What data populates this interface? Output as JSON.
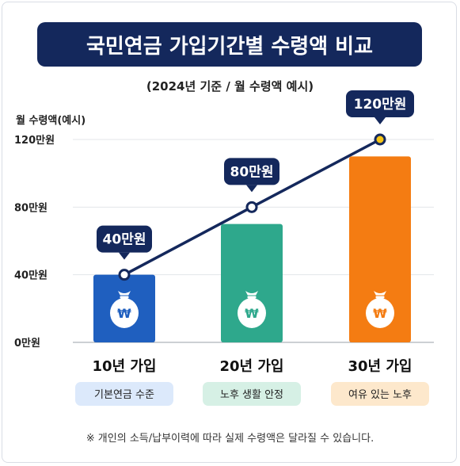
{
  "title": "국민연금 가입기간별 수령액 비교",
  "subtitle": "(2024년 기준 / 월 수령액 예시)",
  "ylabel": "월 수령액(예시)",
  "footnote": "※ 개인의 소득/납부이력에 따라 실제 수령액은 달라질 수 있습니다.",
  "colors": {
    "banner": "#14285c",
    "bar_10": "#1f5fbf",
    "bar_20": "#2ea88c",
    "bar_30": "#f47c12",
    "line": "#14285c",
    "tag_10_bg": "#dce9fb",
    "tag_20_bg": "#d6f0e5",
    "tag_30_bg": "#fde8cc"
  },
  "icons": {
    "bar": "money-bag-won-icon"
  },
  "chart_data": {
    "type": "bar",
    "categories": [
      "10년 가입",
      "20년 가입",
      "30년 가입"
    ],
    "tags": [
      "기본연금 수준",
      "노후 생활 안정",
      "여유 있는 노후"
    ],
    "bar_values": [
      40,
      70,
      110
    ],
    "line_values": [
      40,
      80,
      120
    ],
    "line_labels": [
      "40만원",
      "80만원",
      "120만원"
    ],
    "yticks": [
      0,
      40,
      80,
      120
    ],
    "ytick_labels": [
      "0만원",
      "40만원",
      "80만원",
      "120만원"
    ],
    "ylim": [
      0,
      120
    ],
    "ylabel": "월 수령액(예시)",
    "grid": true
  }
}
